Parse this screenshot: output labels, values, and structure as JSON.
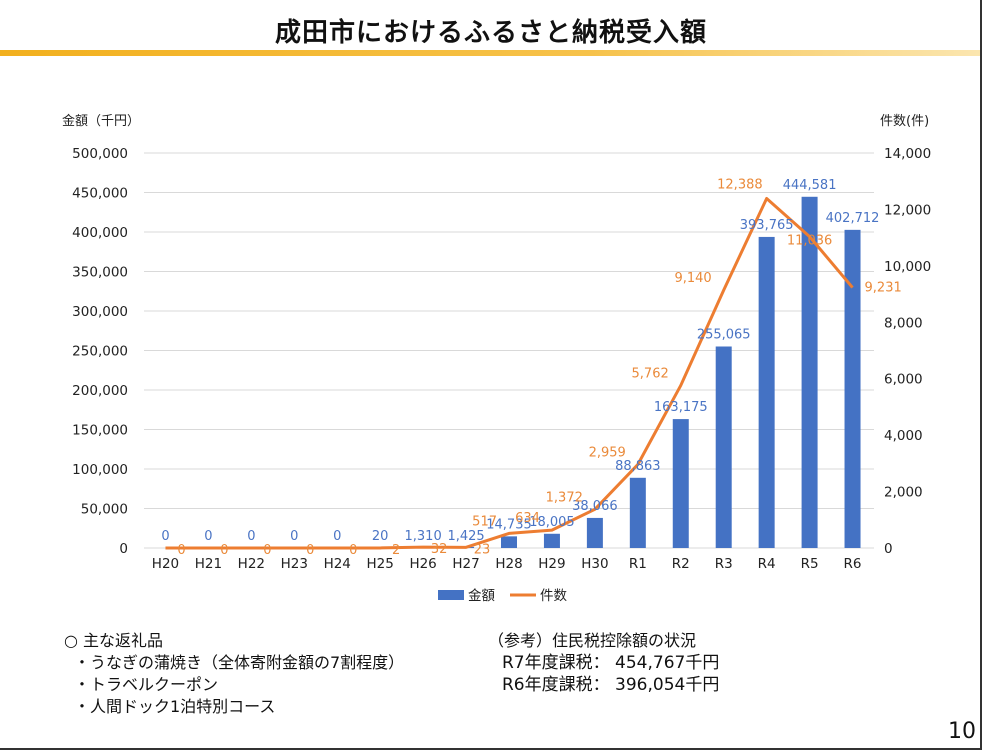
{
  "title": "成田市におけるふるさと納税受入額",
  "chart_data": {
    "type": "bar+line",
    "y_left_label": "金額（千円）",
    "y_right_label": "件数(件)",
    "categories": [
      "H20",
      "H21",
      "H22",
      "H23",
      "H24",
      "H25",
      "H26",
      "H27",
      "H28",
      "H29",
      "H30",
      "R1",
      "R2",
      "R3",
      "R4",
      "R5",
      "R6"
    ],
    "y_left_ticks": [
      "0",
      "50,000",
      "100,000",
      "150,000",
      "200,000",
      "250,000",
      "300,000",
      "350,000",
      "400,000",
      "450,000",
      "500,000"
    ],
    "y_right_ticks": [
      "0",
      "2,000",
      "4,000",
      "6,000",
      "8,000",
      "10,000",
      "12,000",
      "14,000"
    ],
    "y_left_lim": [
      0,
      500000
    ],
    "y_right_lim": [
      0,
      14000
    ],
    "series": [
      {
        "name": "金額",
        "type": "bar",
        "axis": "left",
        "color": "#4472c4",
        "values": [
          0,
          0,
          0,
          0,
          0,
          20,
          1310,
          1425,
          14735,
          18005,
          38066,
          88863,
          163175,
          255065,
          393765,
          444581,
          402712
        ],
        "labels": [
          "0",
          "0",
          "0",
          "0",
          "0",
          "20",
          "1,310",
          "1,425",
          "14,735",
          "18,005",
          "38,066",
          "88,863",
          "163,175",
          "255,065",
          "393,765",
          "444,581",
          "402,712"
        ]
      },
      {
        "name": "件数",
        "type": "line",
        "axis": "right",
        "color": "#ed7d31",
        "values": [
          0,
          0,
          0,
          0,
          0,
          2,
          32,
          23,
          517,
          634,
          1372,
          2959,
          5762,
          9140,
          12388,
          11036,
          9231
        ],
        "labels": [
          "0",
          "0",
          "0",
          "0",
          "0",
          "2",
          "32",
          "23",
          "517",
          "634",
          "1,372",
          "2,959",
          "5,762",
          "9,140",
          "12,388",
          "11,036",
          "9,231"
        ]
      }
    ],
    "grid": true,
    "legend": "bottom"
  },
  "notes_left": {
    "heading": "○ 主な返礼品",
    "items": [
      "・うなぎの蒲焼き（全体寄附金額の7割程度）",
      "・トラベルクーポン",
      "・人間ドック1泊特別コース"
    ]
  },
  "notes_right": {
    "heading": "（参考）住民税控除額の状況",
    "items": [
      "R7年度課税：  454,767千円",
      "R6年度課税：  396,054千円"
    ]
  },
  "page_number": "10"
}
